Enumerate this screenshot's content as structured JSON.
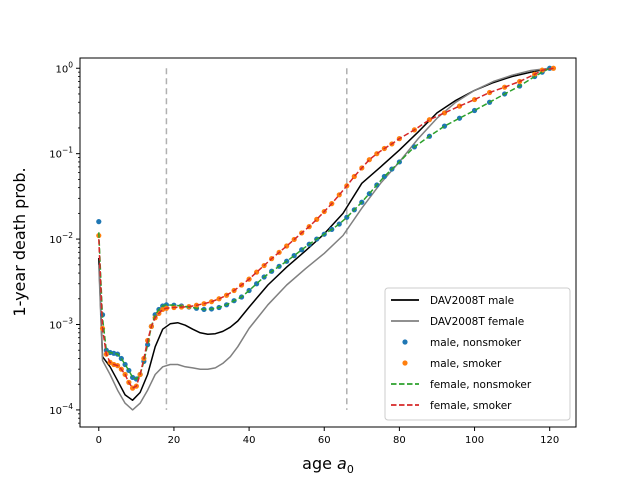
{
  "chart_data": {
    "type": "line",
    "xlabel": "age",
    "xlabel_sub": "0",
    "ylabel": "1-year death prob.",
    "xlim": [
      -5,
      127
    ],
    "ylim_log10": [
      -4.2,
      0.12
    ],
    "xticks": [
      0,
      20,
      40,
      60,
      80,
      100,
      120
    ],
    "yticks": [
      {
        "exp": -4,
        "label": "10",
        "sup": "−4"
      },
      {
        "exp": -3,
        "label": "10",
        "sup": "−3"
      },
      {
        "exp": -2,
        "label": "10",
        "sup": "−2"
      },
      {
        "exp": -1,
        "label": "10",
        "sup": "−1"
      },
      {
        "exp": 0,
        "label": "10",
        "sup": "0"
      }
    ],
    "yscale": "log",
    "grid": false,
    "legend_position": "lower-right",
    "vlines": [
      {
        "x": 18,
        "y_range": [
          0.0001,
          1.0
        ],
        "color": "#b0b0b0",
        "style": "dashed"
      },
      {
        "x": 66,
        "y_range": [
          0.0001,
          1.0
        ],
        "color": "#b0b0b0",
        "style": "dashed"
      }
    ],
    "series": [
      {
        "name": "DAV2008T male",
        "kind": "line",
        "color": "#000000",
        "style": "solid",
        "x": [
          0,
          1,
          3,
          5,
          7,
          9,
          11,
          13,
          15,
          17,
          19,
          21,
          23,
          25,
          27,
          29,
          31,
          33,
          35,
          37,
          40,
          45,
          50,
          55,
          60,
          65,
          70,
          75,
          80,
          85,
          90,
          95,
          100,
          105,
          110,
          115,
          120
        ],
        "y": [
          0.006,
          0.00042,
          0.00032,
          0.00022,
          0.00015,
          0.00013,
          0.00016,
          0.00026,
          0.00055,
          0.00088,
          0.00102,
          0.00105,
          0.00098,
          0.00088,
          0.0008,
          0.00077,
          0.00078,
          0.00083,
          0.00093,
          0.0011,
          0.0016,
          0.0029,
          0.0047,
          0.0073,
          0.0115,
          0.02,
          0.045,
          0.07,
          0.11,
          0.18,
          0.3,
          0.42,
          0.55,
          0.68,
          0.8,
          0.9,
          1.0
        ]
      },
      {
        "name": "DAV2008T female",
        "kind": "line",
        "color": "#808080",
        "style": "solid",
        "x": [
          0,
          1,
          3,
          5,
          7,
          9,
          11,
          13,
          15,
          17,
          19,
          21,
          23,
          25,
          27,
          29,
          31,
          33,
          35,
          37,
          40,
          45,
          50,
          55,
          60,
          65,
          70,
          75,
          80,
          85,
          90,
          95,
          100,
          105,
          110,
          115,
          120
        ],
        "y": [
          0.005,
          0.00038,
          0.00026,
          0.00017,
          0.00012,
          0.0001,
          0.00012,
          0.00017,
          0.00026,
          0.00032,
          0.00034,
          0.00034,
          0.00032,
          0.00031,
          0.0003,
          0.0003,
          0.00031,
          0.00035,
          0.00042,
          0.00055,
          0.0009,
          0.0017,
          0.0029,
          0.0045,
          0.0068,
          0.011,
          0.023,
          0.045,
          0.08,
          0.15,
          0.26,
          0.4,
          0.55,
          0.7,
          0.83,
          0.94,
          1.0
        ]
      },
      {
        "name": "male, nonsmoker",
        "kind": "points",
        "color": "#1f77b4",
        "x": [
          0,
          1,
          2,
          3,
          4,
          5,
          6,
          7,
          8,
          9,
          10,
          11,
          12,
          13,
          14,
          15,
          16,
          17,
          18,
          20,
          22,
          24,
          26,
          28,
          30,
          32,
          34,
          36,
          38,
          40,
          42,
          44,
          46,
          48,
          50,
          52,
          54,
          56,
          58,
          60,
          62,
          64,
          66,
          68,
          70,
          72,
          74,
          76,
          78,
          80,
          84,
          88,
          92,
          96,
          100,
          104,
          108,
          112,
          116,
          118,
          120
        ],
        "y": [
          0.016,
          0.0013,
          0.0005,
          0.00047,
          0.00046,
          0.00045,
          0.0004,
          0.00034,
          0.00029,
          0.00024,
          0.00023,
          0.00026,
          0.00037,
          0.00058,
          0.00095,
          0.0013,
          0.0015,
          0.00165,
          0.0017,
          0.00168,
          0.00165,
          0.0016,
          0.00155,
          0.0015,
          0.00152,
          0.00158,
          0.0017,
          0.0019,
          0.0021,
          0.0025,
          0.003,
          0.0036,
          0.0042,
          0.0048,
          0.0055,
          0.0064,
          0.0075,
          0.0087,
          0.01,
          0.0114,
          0.013,
          0.015,
          0.018,
          0.022,
          0.027,
          0.034,
          0.043,
          0.054,
          0.066,
          0.08,
          0.12,
          0.16,
          0.21,
          0.26,
          0.32,
          0.4,
          0.5,
          0.62,
          0.8,
          0.9,
          1.0
        ]
      },
      {
        "name": "male, smoker",
        "kind": "points",
        "color": "#ff7f0e",
        "x": [
          0,
          1,
          2,
          3,
          4,
          5,
          6,
          7,
          8,
          9,
          10,
          11,
          12,
          13,
          14,
          15,
          16,
          17,
          18,
          20,
          22,
          24,
          26,
          28,
          30,
          32,
          34,
          36,
          38,
          40,
          42,
          44,
          46,
          48,
          50,
          52,
          54,
          56,
          58,
          60,
          62,
          64,
          66,
          68,
          70,
          72,
          74,
          76,
          78,
          80,
          84,
          88,
          92,
          96,
          100,
          104,
          108,
          112,
          116,
          118,
          121
        ],
        "y": [
          0.011,
          0.0009,
          0.00045,
          0.00036,
          0.00034,
          0.00033,
          0.0003,
          0.00026,
          0.00021,
          0.00018,
          0.00019,
          0.00026,
          0.0004,
          0.00065,
          0.00095,
          0.0012,
          0.00135,
          0.0015,
          0.00155,
          0.00158,
          0.0016,
          0.00162,
          0.00168,
          0.00175,
          0.00185,
          0.002,
          0.0022,
          0.0025,
          0.0029,
          0.0034,
          0.0041,
          0.0049,
          0.0059,
          0.007,
          0.0083,
          0.0099,
          0.0118,
          0.014,
          0.017,
          0.021,
          0.026,
          0.033,
          0.042,
          0.054,
          0.068,
          0.085,
          0.1,
          0.115,
          0.13,
          0.15,
          0.19,
          0.25,
          0.3,
          0.36,
          0.43,
          0.52,
          0.6,
          0.7,
          0.85,
          0.95,
          1.0
        ]
      },
      {
        "name": "female, nonsmoker",
        "kind": "line",
        "color": "#2ca02c",
        "style": "dashed",
        "x": [
          0,
          1,
          2,
          3,
          4,
          5,
          6,
          7,
          8,
          9,
          10,
          11,
          12,
          13,
          14,
          15,
          16,
          17,
          18,
          20,
          22,
          24,
          26,
          28,
          30,
          32,
          34,
          36,
          38,
          40,
          42,
          44,
          46,
          48,
          50,
          52,
          54,
          56,
          58,
          60,
          62,
          64,
          66,
          68,
          70,
          72,
          74,
          76,
          78,
          80,
          84,
          88,
          92,
          96,
          100,
          104,
          108,
          112,
          116,
          118,
          120
        ],
        "y": [
          0.012,
          0.0012,
          0.0005,
          0.00047,
          0.00046,
          0.00045,
          0.0004,
          0.00034,
          0.00029,
          0.00024,
          0.00023,
          0.00026,
          0.00037,
          0.00058,
          0.00095,
          0.0013,
          0.0015,
          0.00165,
          0.0017,
          0.00168,
          0.00165,
          0.0016,
          0.00155,
          0.0015,
          0.00152,
          0.00158,
          0.0017,
          0.0019,
          0.0021,
          0.0025,
          0.003,
          0.0036,
          0.0042,
          0.0048,
          0.0055,
          0.0064,
          0.0075,
          0.0087,
          0.01,
          0.0114,
          0.013,
          0.015,
          0.018,
          0.022,
          0.027,
          0.034,
          0.043,
          0.054,
          0.066,
          0.08,
          0.12,
          0.16,
          0.21,
          0.26,
          0.32,
          0.4,
          0.5,
          0.62,
          0.8,
          0.9,
          1.0
        ]
      },
      {
        "name": "female, smoker",
        "kind": "line",
        "color": "#d62728",
        "style": "dashed",
        "x": [
          0,
          1,
          2,
          3,
          4,
          5,
          6,
          7,
          8,
          9,
          10,
          11,
          12,
          13,
          14,
          15,
          16,
          17,
          18,
          20,
          22,
          24,
          26,
          28,
          30,
          32,
          34,
          36,
          38,
          40,
          42,
          44,
          46,
          48,
          50,
          52,
          54,
          56,
          58,
          60,
          62,
          64,
          66,
          68,
          70,
          72,
          74,
          76,
          78,
          80,
          84,
          88,
          92,
          96,
          100,
          104,
          108,
          112,
          116,
          118,
          121
        ],
        "y": [
          0.01,
          0.0009,
          0.00045,
          0.00036,
          0.00034,
          0.00033,
          0.0003,
          0.00026,
          0.00021,
          0.00018,
          0.00019,
          0.00026,
          0.0004,
          0.00065,
          0.00095,
          0.0012,
          0.00135,
          0.0015,
          0.00155,
          0.00158,
          0.0016,
          0.00162,
          0.00168,
          0.00175,
          0.00185,
          0.002,
          0.0022,
          0.0025,
          0.0029,
          0.0034,
          0.0041,
          0.0049,
          0.0059,
          0.007,
          0.0083,
          0.0099,
          0.0118,
          0.014,
          0.017,
          0.021,
          0.026,
          0.033,
          0.042,
          0.054,
          0.068,
          0.085,
          0.1,
          0.115,
          0.13,
          0.15,
          0.19,
          0.25,
          0.3,
          0.36,
          0.43,
          0.52,
          0.6,
          0.7,
          0.85,
          0.95,
          1.0
        ]
      }
    ]
  }
}
